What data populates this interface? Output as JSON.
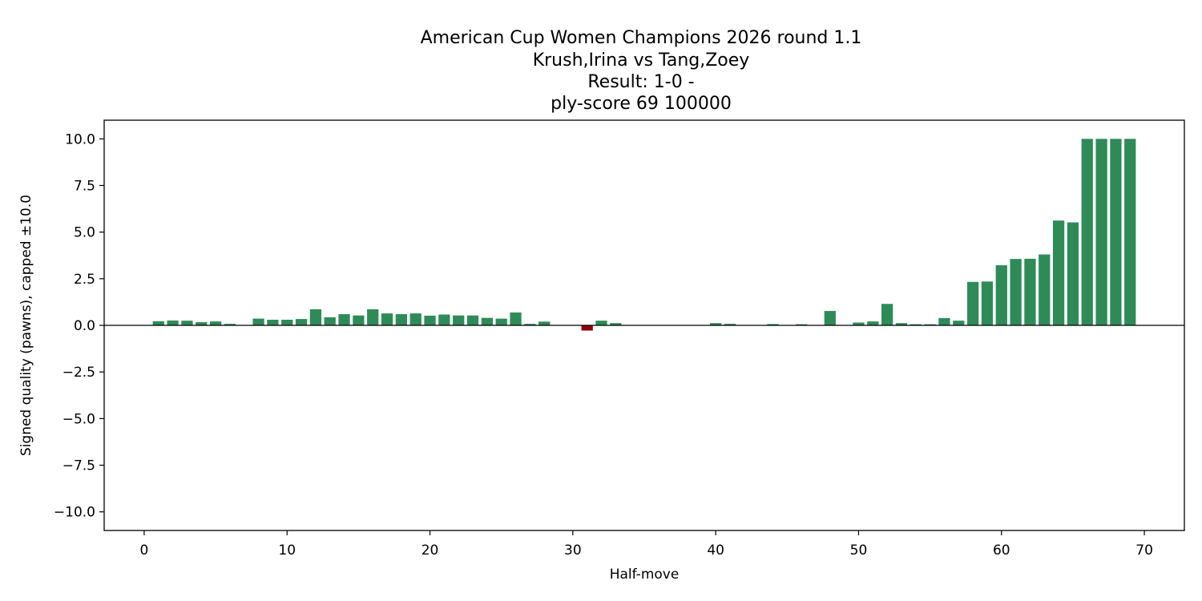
{
  "chart_data": {
    "type": "bar",
    "title_lines": [
      "American Cup Women Champions 2026  round 1.1",
      "Krush,Irina vs Tang,Zoey",
      "Result: 1-0 -",
      "ply-score 69 100000"
    ],
    "xlabel": "Half-move",
    "ylabel": "Signed quality (pawns), capped ±10.0",
    "xlim": [
      -2.8,
      72.8
    ],
    "ylim": [
      -11,
      11
    ],
    "xticks": [
      0,
      10,
      20,
      30,
      40,
      50,
      60,
      70
    ],
    "xtick_labels": [
      "0",
      "10",
      "20",
      "30",
      "40",
      "50",
      "60",
      "70"
    ],
    "yticks": [
      10,
      7.5,
      5,
      2.5,
      0,
      -2.5,
      -5,
      -7.5,
      -10
    ],
    "ytick_labels": [
      "10.0",
      "7.5",
      "5.0",
      "2.5",
      "0.0",
      "−2.5",
      "−5.0",
      "−7.5",
      "−10.0"
    ],
    "zero_line": true,
    "grid": false,
    "colors": {
      "positive": "#2e8b57",
      "negative": "#8b0000"
    },
    "x": [
      1,
      2,
      3,
      4,
      5,
      6,
      7,
      8,
      9,
      10,
      11,
      12,
      13,
      14,
      15,
      16,
      17,
      18,
      19,
      20,
      21,
      22,
      23,
      24,
      25,
      26,
      27,
      28,
      29,
      30,
      31,
      32,
      33,
      34,
      35,
      36,
      37,
      38,
      39,
      40,
      41,
      42,
      43,
      44,
      45,
      46,
      47,
      48,
      49,
      50,
      51,
      52,
      53,
      54,
      55,
      56,
      57,
      58,
      59,
      60,
      61,
      62,
      63,
      64,
      65,
      66,
      67,
      68,
      69
    ],
    "values": [
      0.22,
      0.26,
      0.25,
      0.17,
      0.21,
      0.08,
      0,
      0.36,
      0.3,
      0.3,
      0.34,
      0.86,
      0.43,
      0.6,
      0.53,
      0.86,
      0.64,
      0.6,
      0.64,
      0.52,
      0.58,
      0.53,
      0.53,
      0.4,
      0.36,
      0.69,
      0.08,
      0.2,
      0,
      0,
      -0.28,
      0.25,
      0.12,
      0.02,
      0.02,
      0.01,
      0.01,
      0.01,
      0,
      0.12,
      0.08,
      0.02,
      0.02,
      0.07,
      0,
      0.06,
      0,
      0.77,
      0,
      0.15,
      0.21,
      1.15,
      0.12,
      0.06,
      0.06,
      0.39,
      0.25,
      2.33,
      2.35,
      3.22,
      3.56,
      3.57,
      3.8,
      5.62,
      5.52,
      10,
      10,
      10,
      10
    ]
  }
}
